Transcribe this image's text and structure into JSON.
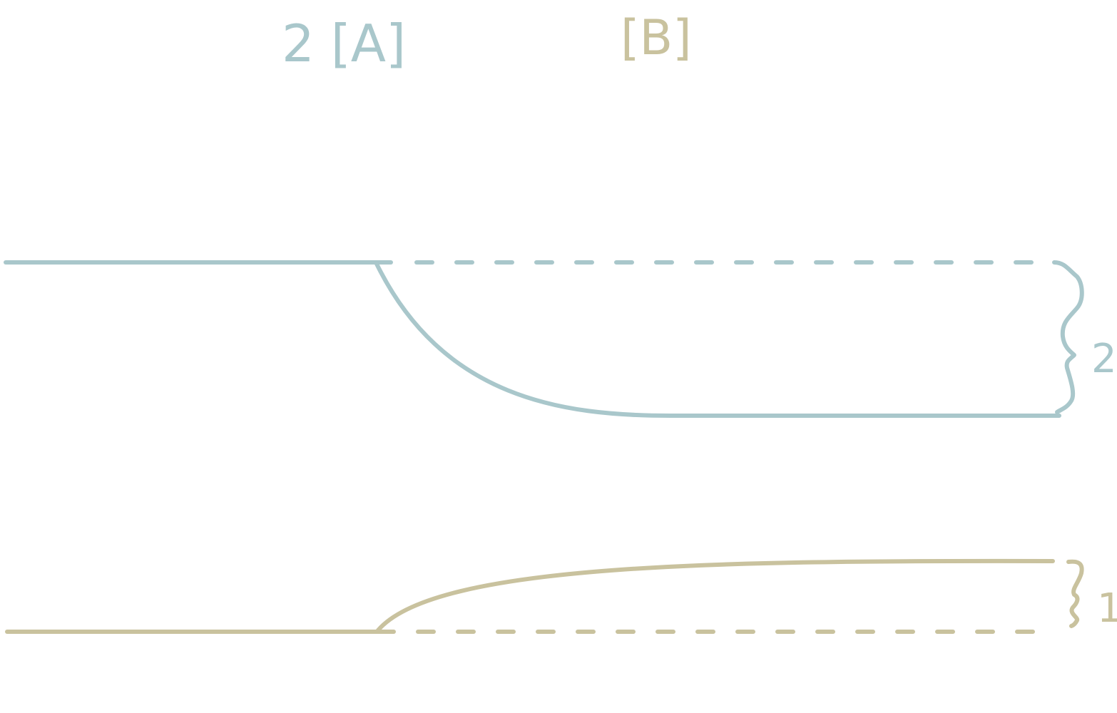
{
  "colors": {
    "series_a": "#a9c7cb",
    "series_b": "#c9c29e",
    "background": "#ffffff"
  },
  "labels": {
    "label_a": "2 [A]",
    "label_b": "[B]",
    "brace_a_value": "2",
    "brace_b_value": "1"
  }
}
